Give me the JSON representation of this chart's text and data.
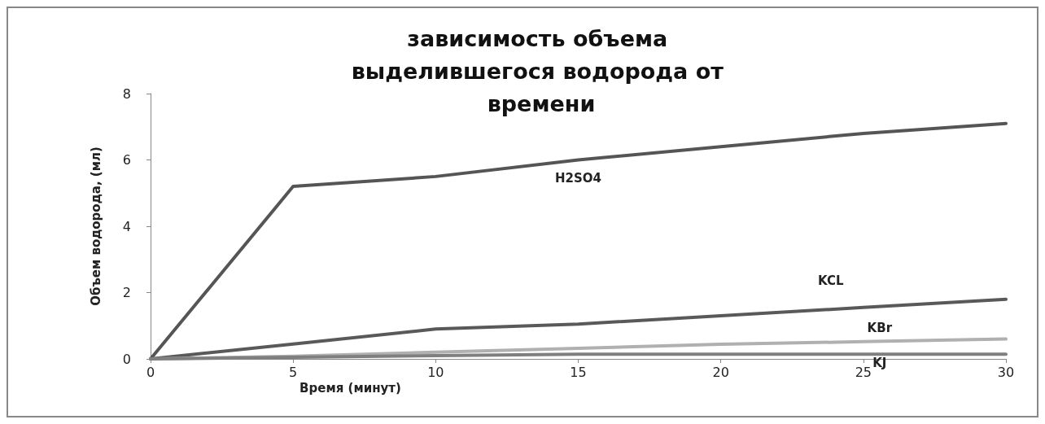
{
  "chart_data": {
    "type": "line",
    "title": "зависимость объема выделившегося водорода от времени",
    "xlabel": "Время (минут)",
    "ylabel": "Объем водорода, (мл)",
    "x": [
      0,
      5,
      10,
      15,
      20,
      25,
      30
    ],
    "series": [
      {
        "name": "H2SO4",
        "color": "#555555",
        "values": [
          0,
          5.2,
          5.5,
          6.0,
          6.4,
          6.8,
          7.1
        ]
      },
      {
        "name": "KCL",
        "color": "#595959",
        "values": [
          0,
          0.45,
          0.9,
          1.05,
          1.3,
          1.55,
          1.8
        ]
      },
      {
        "name": "KBr",
        "color": "#b0b0b0",
        "values": [
          0,
          0.08,
          0.2,
          0.32,
          0.44,
          0.52,
          0.6
        ]
      },
      {
        "name": "KJ",
        "color": "#7f7f7f",
        "values": [
          0,
          0.05,
          0.1,
          0.14,
          0.14,
          0.14,
          0.14
        ]
      }
    ],
    "xlim": [
      0,
      30
    ],
    "xticks": [
      0,
      5,
      10,
      15,
      20,
      25,
      30
    ],
    "ylim": [
      0,
      8
    ],
    "yticks": [
      0,
      2,
      4,
      6,
      8
    ],
    "grid": false,
    "legend": false,
    "marker": "none",
    "line_style": "solid"
  }
}
